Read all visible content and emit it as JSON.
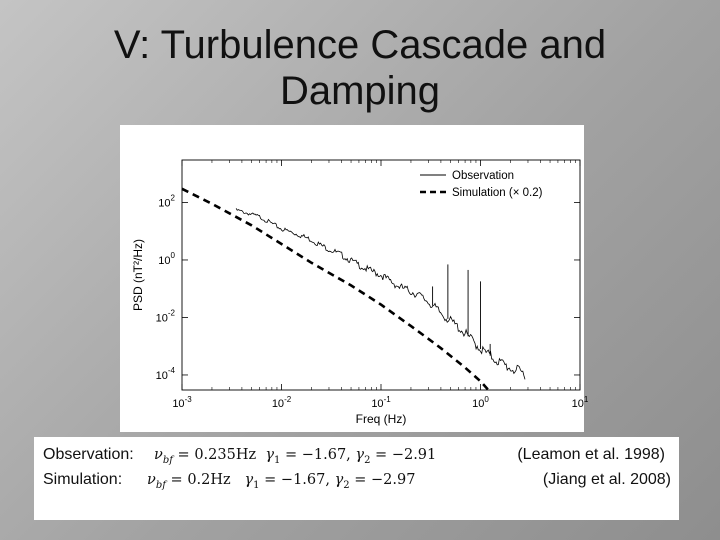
{
  "slide": {
    "title_line1": "V: Turbulence Cascade and",
    "title_line2": "Damping"
  },
  "info": {
    "obs_label": "Observation:",
    "obs_nu": "0.235Hz",
    "obs_g1": "−1.67,",
    "obs_g2": "−2.91",
    "sim_label": "Simulation:",
    "sim_nu": "0.2Hz",
    "sim_g1": "−1.67,",
    "sim_g2": "−2.97",
    "ref_obs": "(Leamon et al. 1998)",
    "ref_sim": "(Jiang et al. 2008)"
  },
  "chart_data": {
    "type": "line",
    "xscale": "log",
    "yscale": "log",
    "xlabel": "Freq (Hz)",
    "ylabel": "PSD (nT²/Hz)",
    "xlim": [
      0.001,
      10
    ],
    "ylim": [
      3e-05,
      3000
    ],
    "x_ticks": [
      0.001,
      0.01,
      0.1,
      1,
      10
    ],
    "y_ticks": [
      0.0001,
      0.01,
      1,
      100
    ],
    "x_tick_labels": [
      {
        "base": "10",
        "exp": "-3"
      },
      {
        "base": "10",
        "exp": "-2"
      },
      {
        "base": "10",
        "exp": "-1"
      },
      {
        "base": "10",
        "exp": "0"
      },
      {
        "base": "10",
        "exp": "1"
      }
    ],
    "y_tick_labels": [
      {
        "base": "10",
        "exp": "-4"
      },
      {
        "base": "10",
        "exp": "-2"
      },
      {
        "base": "10",
        "exp": "0"
      },
      {
        "base": "10",
        "exp": "2"
      }
    ],
    "legend_position": "top-right",
    "series": [
      {
        "name": "Observation",
        "style": "solid",
        "color": "#000000",
        "x": [
          0.0035,
          0.006,
          0.01,
          0.015,
          0.02,
          0.025,
          0.03,
          0.04,
          0.05,
          0.07,
          0.1,
          0.15,
          0.2,
          0.235,
          0.3,
          0.4,
          0.6,
          0.8,
          1.0,
          1.5,
          2.0,
          2.8
        ],
        "y": [
          55,
          32,
          12,
          7.5,
          5,
          3.2,
          2.4,
          1.5,
          0.95,
          0.5,
          0.3,
          0.12,
          0.08,
          0.062,
          0.035,
          0.014,
          0.0045,
          0.0018,
          0.0008,
          0.0003,
          0.00017,
          0.00011
        ]
      },
      {
        "name": "Simulation (× 0.2)",
        "style": "dashed",
        "color": "#000000",
        "x": [
          0.001,
          0.002,
          0.005,
          0.01,
          0.02,
          0.05,
          0.1,
          0.2,
          0.3,
          0.4,
          0.5,
          0.7,
          1.0,
          1.2
        ],
        "y": [
          300,
          90,
          16,
          3.6,
          0.8,
          0.13,
          0.028,
          0.005,
          0.0018,
          0.00085,
          0.00046,
          0.00018,
          6e-05,
          3e-05
        ]
      }
    ],
    "spikes": [
      {
        "x": 0.47,
        "y_top": 0.7
      },
      {
        "x": 0.75,
        "y_top": 0.45
      },
      {
        "x": 1.0,
        "y_top": 0.18
      },
      {
        "x": 1.25,
        "y_top": 0.0012
      },
      {
        "x": 0.33,
        "y_top": 0.12
      }
    ]
  }
}
